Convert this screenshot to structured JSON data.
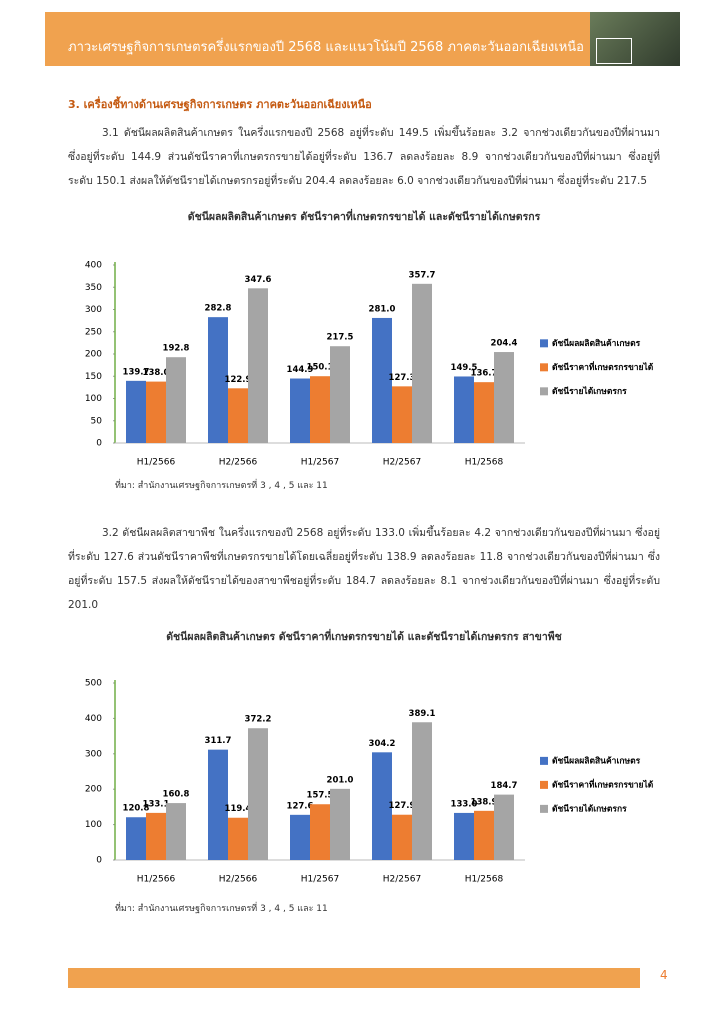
{
  "header": {
    "title": "ภาวะเศรษฐกิจการเกษตรครึ่งแรกของปี 2568 และแนวโน้มปี 2568 ภาคตะวันออกเฉียงเหนือ"
  },
  "section": {
    "heading": "3. เครื่องชี้ทางด้านเศรษฐกิจการเกษตร ภาคตะวันออกเฉียงเหนือ"
  },
  "paragraphs": [
    "3.1 ดัชนีผลผลิตสินค้าเกษตร ในครึ่งแรกของปี 2568 อยู่ที่ระดับ 149.5 เพิ่มขึ้นร้อยละ 3.2 จากช่วงเดียวกันของปีที่ผ่านมา ซึ่งอยู่ที่ระดับ 144.9 ส่วนดัชนีราคาที่เกษตรกรขายได้อยู่ที่ระดับ 136.7 ลดลงร้อยละ 8.9 จากช่วงเดียวกันของปีที่ผ่านมา ซึ่งอยู่ที่ระดับ 150.1 ส่งผลให้ดัชนีรายได้เกษตรกรอยู่ที่ระดับ 204.4 ลดลงร้อยละ 6.0 จากช่วงเดียวกันของปีที่ผ่านมา ซึ่งอยู่ที่ระดับ 217.5",
    "3.2 ดัชนีผลผลิตสาขาพืช ในครึ่งแรกของปี 2568 อยู่ที่ระดับ 133.0 เพิ่มขึ้นร้อยละ 4.2 จากช่วงเดียวกันของปีที่ผ่านมา ซึ่งอยู่ที่ระดับ 127.6 ส่วนดัชนีราคาพืชที่เกษตรกรขายได้โดยเฉลี่ยอยู่ที่ระดับ 138.9 ลดลงร้อยละ 11.8 จากช่วงเดียวกันของปีที่ผ่านมา ซึ่งอยู่ที่ระดับ 157.5 ส่งผลให้ดัชนีรายได้ของสาขาพืชอยู่ที่ระดับ 184.7 ลดลงร้อยละ 8.1 จากช่วงเดียวกันของปีที่ผ่านมา ซึ่งอยู่ที่ระดับ 201.0"
  ],
  "chart_data": [
    {
      "type": "bar",
      "title": "ดัชนีผลผลิตสินค้าเกษตร ดัชนีราคาที่เกษตรกรขายได้ และดัชนีรายได้เกษตรกร",
      "categories": [
        "H1/2566",
        "H2/2566",
        "H1/2567",
        "H2/2567",
        "H1/2568"
      ],
      "series": [
        {
          "name": "ดัชนีผลผลิตสินค้าเกษตร",
          "color": "#4472c4",
          "values": [
            139.7,
            282.8,
            144.9,
            281.0,
            149.5
          ],
          "value_labels": [
            "139.7",
            "282.8",
            "144.9",
            "281.0",
            "149.5"
          ]
        },
        {
          "name": "ดัชนีราคาที่เกษตรกรขายได้",
          "color": "#ed7d31",
          "values": [
            138.0,
            122.9,
            150.1,
            127.3,
            136.7
          ],
          "value_labels": [
            "138.0",
            "122.9",
            "150.1",
            "127.3",
            "136.7"
          ]
        },
        {
          "name": "ดัชนีรายได้เกษตรกร",
          "color": "#a5a5a5",
          "values": [
            192.8,
            347.6,
            217.5,
            357.7,
            204.4
          ],
          "value_labels": [
            "192.8",
            "347.6",
            "217.5",
            "357.7",
            "204.4"
          ]
        }
      ],
      "ylim": [
        0,
        400
      ],
      "yticks": [
        0,
        50,
        100,
        150,
        200,
        250,
        300,
        350,
        400
      ],
      "legend": "right",
      "source": "ที่มา: สำนักงานเศรษฐกิจการเกษตรที่ 3 , 4 , 5 และ 11"
    },
    {
      "type": "bar",
      "title": "ดัชนีผลผลิตสินค้าเกษตร ดัชนีราคาที่เกษตรกรขายได้ และดัชนีรายได้เกษตรกร สาขาพืช",
      "categories": [
        "H1/2566",
        "H2/2566",
        "H1/2567",
        "H2/2567",
        "H1/2568"
      ],
      "series": [
        {
          "name": "ดัชนีผลผลิตสินค้าเกษตร",
          "color": "#4472c4",
          "values": [
            120.8,
            311.7,
            127.6,
            304.2,
            133.0
          ],
          "value_labels": [
            "120.8",
            "311.7",
            "127.6",
            "304.2",
            "133.0"
          ]
        },
        {
          "name": "ดัชนีราคาที่เกษตรกรขายได้",
          "color": "#ed7d31",
          "values": [
            133.1,
            119.4,
            157.5,
            127.9,
            138.9
          ],
          "value_labels": [
            "133.1",
            "119.4",
            "157.5",
            "127.9",
            "138.9"
          ]
        },
        {
          "name": "ดัชนีรายได้เกษตรกร",
          "color": "#a5a5a5",
          "values": [
            160.8,
            372.2,
            201.0,
            389.1,
            184.7
          ],
          "value_labels": [
            "160.8",
            "372.2",
            "201.0",
            "389.1",
            "184.7"
          ]
        }
      ],
      "ylim": [
        0,
        500
      ],
      "yticks": [
        0,
        100,
        200,
        300,
        400,
        500
      ],
      "legend": "right",
      "source": "ที่มา: สำนักงานเศรษฐกิจการเกษตรที่ 3 , 4 , 5 และ 11"
    }
  ],
  "page_number": "4"
}
